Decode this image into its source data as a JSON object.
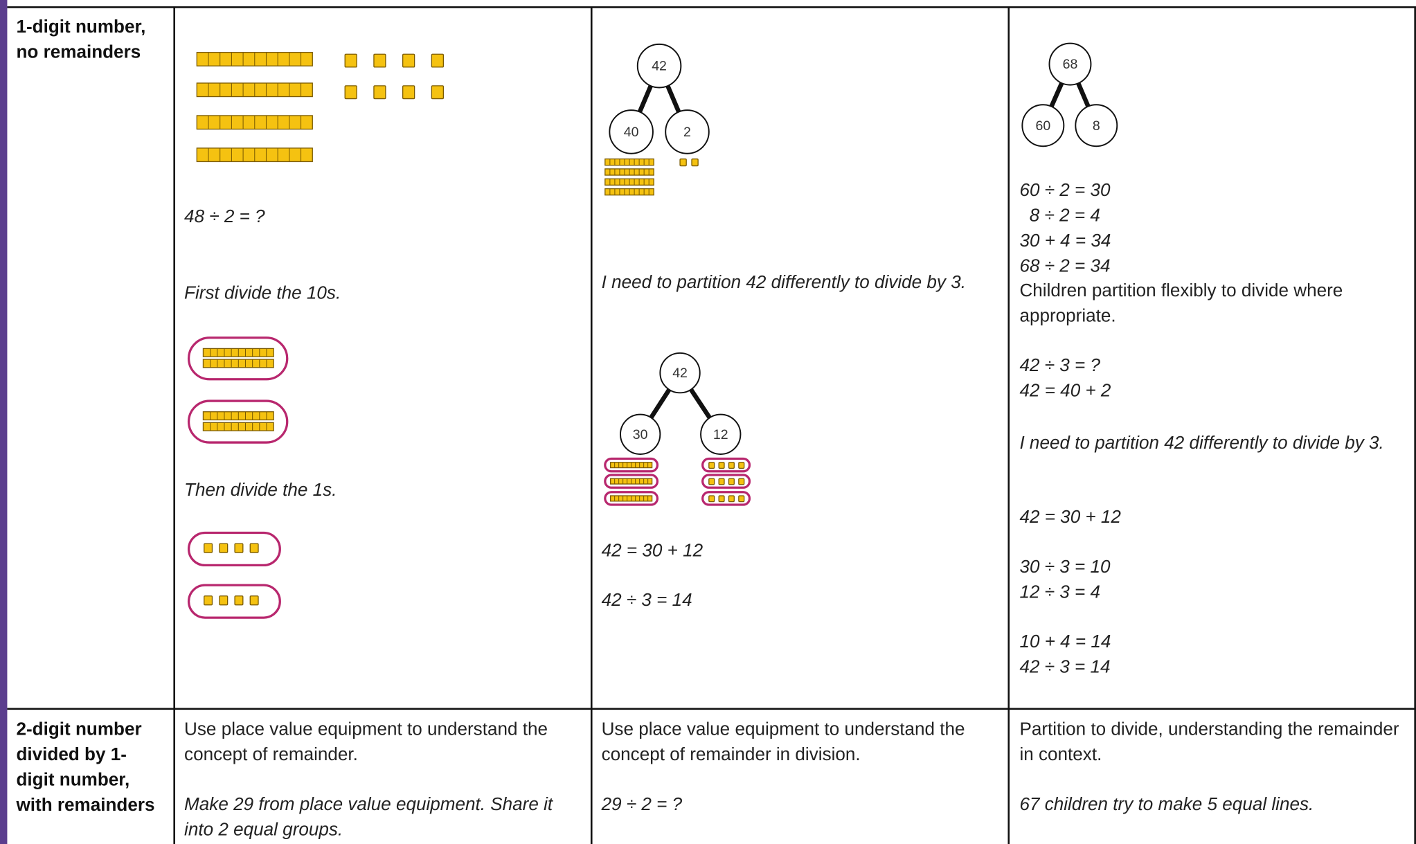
{
  "table": {
    "rows": [
      {
        "heading": "1-digit number, no remainders",
        "cells": [
          {
            "lines": [
              "48 ÷ 2 = ?",
              "First divide the 10s.",
              "Then divide the 1s."
            ]
          },
          {
            "diagram_1": [
              "42",
              "40",
              "2"
            ],
            "text": "I need to partition 42 differently to divide by 3.",
            "diagram_2": [
              "42",
              "30",
              "12"
            ],
            "lines": [
              "42 = 30 + 12",
              "42 ÷ 3 = 14"
            ]
          },
          {
            "diagram": [
              "68",
              "60",
              "8"
            ],
            "lines": [
              "60 ÷ 2 = 30",
              "8 ÷ 2 = 4",
              "30 + 4 = 34",
              "68 ÷ 2 = 34"
            ],
            "note": "Children partition flexibly to divide where appropriate.",
            "lines_2": [
              "42 ÷ 3 = ?",
              "42 = 40 + 2"
            ],
            "text": "I need to partition 42 differently to divide by 3.",
            "lines_3": [
              "42 = 30 + 12",
              "30 ÷ 3 = 10",
              "12 ÷ 3 = 4",
              "10 + 4 = 14",
              "42 ÷ 3 = 14"
            ]
          }
        ]
      },
      {
        "heading": "2-digit number divided by 1-digit number, with remainders",
        "cells": [
          {
            "text": "Use place value equipment to understand the concept of remainder.",
            "task": "Make 29 from place value equipment. Share it into 2 equal groups."
          },
          {
            "text": "Use place value equipment to understand the concept of remainder in division.",
            "task": "29 ÷ 2 = ?"
          },
          {
            "text": "Partition to divide, understanding the remainder in context.",
            "task": "67 children try to make 5 equal lines."
          }
        ]
      }
    ]
  }
}
